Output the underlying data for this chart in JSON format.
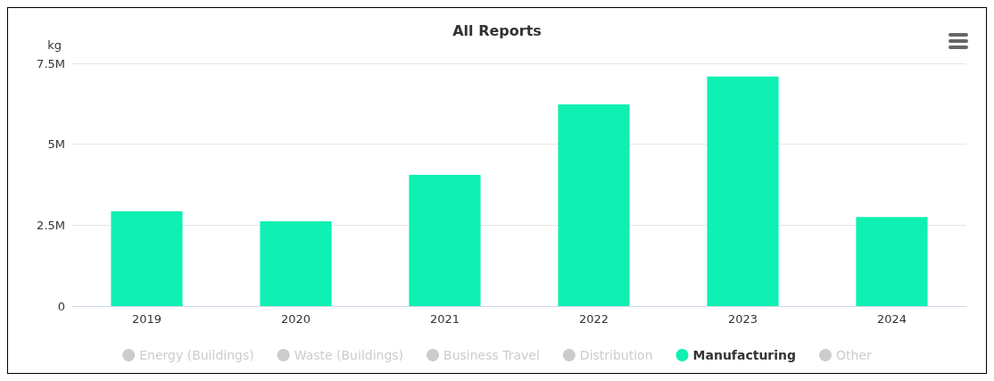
{
  "chart_data": {
    "type": "bar",
    "title": "All Reports",
    "ylabel": "kg",
    "categories": [
      "2019",
      "2020",
      "2021",
      "2022",
      "2023",
      "2024"
    ],
    "series": [
      {
        "name": "Energy (Buildings)",
        "color": "#cccccc",
        "values": [
          null,
          null,
          null,
          null,
          null,
          null
        ]
      },
      {
        "name": "Waste (Buildings)",
        "color": "#cccccc",
        "values": [
          null,
          null,
          null,
          null,
          null,
          null
        ]
      },
      {
        "name": "Business Travel",
        "color": "#cccccc",
        "values": [
          null,
          null,
          null,
          null,
          null,
          null
        ]
      },
      {
        "name": "Distribution",
        "color": "#cccccc",
        "values": [
          null,
          null,
          null,
          null,
          null,
          null
        ]
      },
      {
        "name": "Manufacturing",
        "color": "#0ff0b3",
        "values": [
          2930000,
          2620000,
          4050000,
          6230000,
          7090000,
          2750000
        ]
      },
      {
        "name": "Other",
        "color": "#cccccc",
        "values": [
          null,
          null,
          null,
          null,
          null,
          null
        ]
      }
    ],
    "ylim": [
      0,
      7500000
    ],
    "yticks": [
      {
        "value": 0,
        "label": "0"
      },
      {
        "value": 2500000,
        "label": "2.5M"
      },
      {
        "value": 5000000,
        "label": "5M"
      },
      {
        "value": 7500000,
        "label": "7.5M"
      }
    ],
    "grid": "y",
    "legend": "bottom"
  }
}
